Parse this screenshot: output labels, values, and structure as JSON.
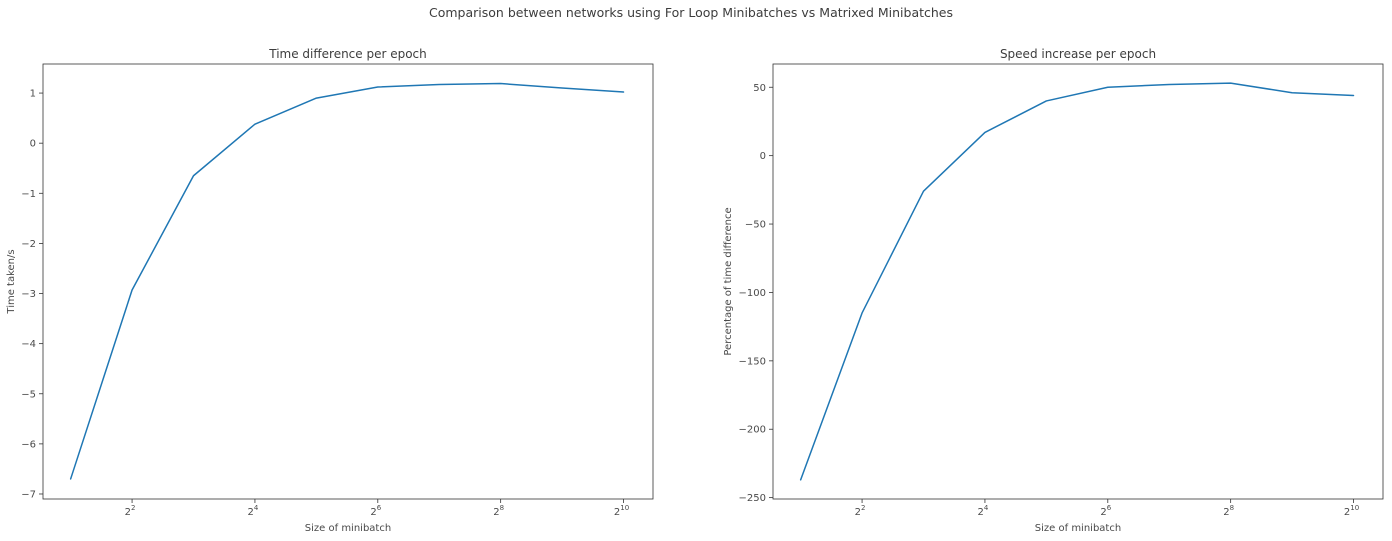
{
  "figure": {
    "suptitle": "Comparison between networks using For Loop Minibatches vs Matrixed Minibatches",
    "line_color": "#1f77b4"
  },
  "chart_data": [
    {
      "type": "line",
      "title": "Time difference per epoch",
      "xlabel": "Size of minibatch",
      "ylabel": "Time taken/s",
      "xscale": "log2",
      "x": [
        2,
        4,
        8,
        16,
        32,
        64,
        128,
        256,
        512,
        1024
      ],
      "xticks": [
        {
          "value": 4,
          "base": "2",
          "exp": "2"
        },
        {
          "value": 16,
          "base": "2",
          "exp": "4"
        },
        {
          "value": 64,
          "base": "2",
          "exp": "6"
        },
        {
          "value": 256,
          "base": "2",
          "exp": "8"
        },
        {
          "value": 1024,
          "base": "2",
          "exp": "10"
        }
      ],
      "yticks": [
        -7,
        -6,
        -5,
        -4,
        -3,
        -2,
        -1,
        0,
        1
      ],
      "ytick_labels": [
        "−7",
        "−6",
        "−5",
        "−4",
        "−3",
        "−2",
        "−1",
        "0",
        "1"
      ],
      "ylim": [
        -7.1,
        1.58
      ],
      "xlim_log2": [
        0.55,
        10.48
      ],
      "grid": false,
      "series": [
        {
          "values": [
            -6.7,
            -2.93,
            -0.65,
            0.38,
            0.9,
            1.12,
            1.17,
            1.19,
            1.1,
            1.02
          ]
        }
      ]
    },
    {
      "type": "line",
      "title": "Speed increase per epoch",
      "xlabel": "Size of minibatch",
      "ylabel": "Percentage of time difference",
      "xscale": "log2",
      "x": [
        2,
        4,
        8,
        16,
        32,
        64,
        128,
        256,
        512,
        1024
      ],
      "xticks": [
        {
          "value": 4,
          "base": "2",
          "exp": "2"
        },
        {
          "value": 16,
          "base": "2",
          "exp": "4"
        },
        {
          "value": 64,
          "base": "2",
          "exp": "6"
        },
        {
          "value": 256,
          "base": "2",
          "exp": "8"
        },
        {
          "value": 1024,
          "base": "2",
          "exp": "10"
        }
      ],
      "yticks": [
        -250,
        -200,
        -150,
        -100,
        -50,
        0,
        50
      ],
      "ytick_labels": [
        "−250",
        "−200",
        "−150",
        "−100",
        "−50",
        "0",
        "50"
      ],
      "ylim": [
        -251,
        67
      ],
      "xlim_log2": [
        0.55,
        10.48
      ],
      "grid": false,
      "series": [
        {
          "values": [
            -237,
            -115,
            -26,
            17,
            40,
            50,
            52,
            53,
            46,
            44
          ]
        }
      ]
    }
  ]
}
